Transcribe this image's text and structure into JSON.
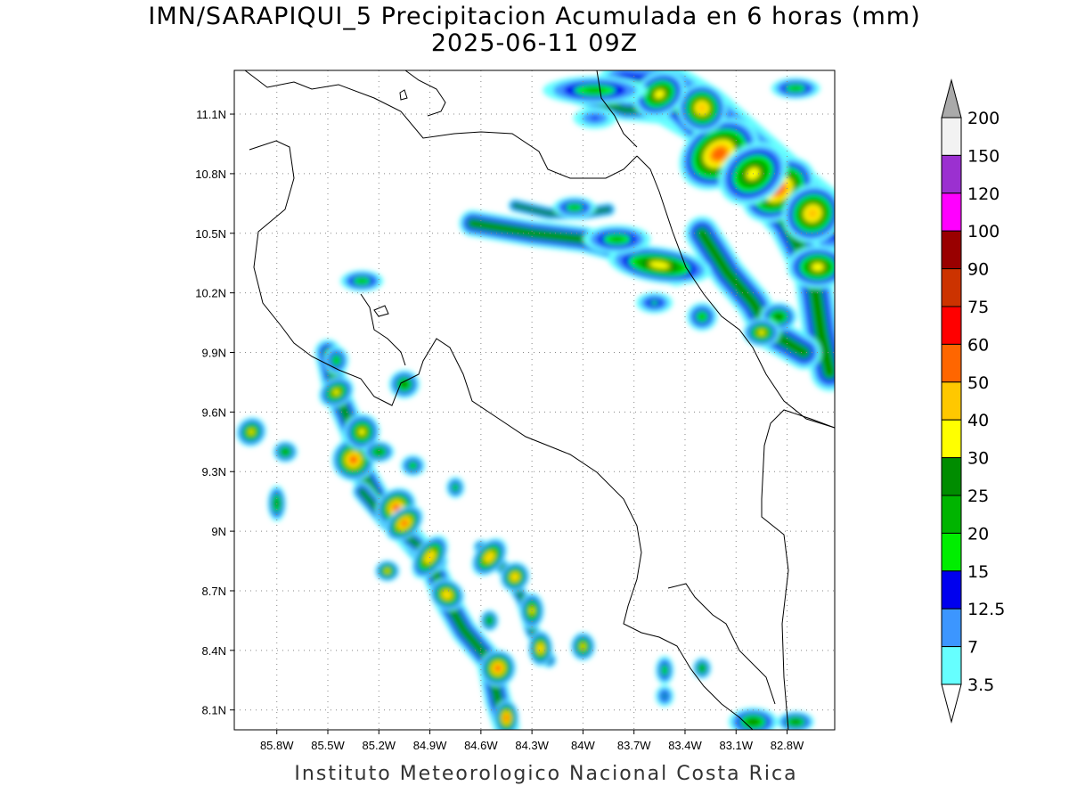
{
  "title": {
    "line1": "IMN/SARAPIQUI_5 Precipitacion Acumulada en 6 horas (mm)",
    "line2": "2025-06-11 09Z"
  },
  "footer": "Instituto Meteorologico Nacional Costa Rica",
  "map": {
    "lon_range": [
      -86.05,
      -82.52
    ],
    "lat_range": [
      8.0,
      11.32
    ],
    "lon_ticks": [
      {
        "value": -85.8,
        "label": "85.8W"
      },
      {
        "value": -85.5,
        "label": "85.5W"
      },
      {
        "value": -85.2,
        "label": "85.2W"
      },
      {
        "value": -84.9,
        "label": "84.9W"
      },
      {
        "value": -84.6,
        "label": "84.6W"
      },
      {
        "value": -84.3,
        "label": "84.3W"
      },
      {
        "value": -84.0,
        "label": "84W"
      },
      {
        "value": -83.7,
        "label": "83.7W"
      },
      {
        "value": -83.4,
        "label": "83.4W"
      },
      {
        "value": -83.1,
        "label": "83.1W"
      },
      {
        "value": -82.8,
        "label": "82.8W"
      }
    ],
    "lat_ticks": [
      {
        "value": 11.1,
        "label": "11.1N"
      },
      {
        "value": 10.8,
        "label": "10.8N"
      },
      {
        "value": 10.5,
        "label": "10.5N"
      },
      {
        "value": 10.2,
        "label": "10.2N"
      },
      {
        "value": 9.9,
        "label": "9.9N"
      },
      {
        "value": 9.6,
        "label": "9.6N"
      },
      {
        "value": 9.3,
        "label": "9.3N"
      },
      {
        "value": 9.0,
        "label": "9N"
      },
      {
        "value": 8.7,
        "label": "8.7N"
      },
      {
        "value": 8.4,
        "label": "8.4N"
      },
      {
        "value": 8.1,
        "label": "8.1N"
      }
    ],
    "grid": true
  },
  "colorbar": {
    "levels": [
      {
        "label": "200",
        "color": "#aaaaaa"
      },
      {
        "label": "150",
        "color": "#f2f2f2"
      },
      {
        "label": "120",
        "color": "#9b30d0"
      },
      {
        "label": "100",
        "color": "#ff00ff"
      },
      {
        "label": "90",
        "color": "#990000"
      },
      {
        "label": "75",
        "color": "#cc3300"
      },
      {
        "label": "60",
        "color": "#ff0000"
      },
      {
        "label": "50",
        "color": "#ff6600"
      },
      {
        "label": "40",
        "color": "#ffc800"
      },
      {
        "label": "30",
        "color": "#ffff00"
      },
      {
        "label": "25",
        "color": "#008c00"
      },
      {
        "label": "20",
        "color": "#00b400"
      },
      {
        "label": "15",
        "color": "#00ee00"
      },
      {
        "label": "12.5",
        "color": "#0000ee"
      },
      {
        "label": "7",
        "color": "#3c96ff"
      },
      {
        "label": "3.5",
        "color": "#66ffff"
      }
    ],
    "top_arrow_color": "#aaaaaa",
    "bottom_arrow_color": "#ffffff"
  },
  "precip_cells": [
    {
      "lon": -83.2,
      "lat": 10.9,
      "rx": 0.14,
      "ry": 0.09,
      "level": 8,
      "rot": 35
    },
    {
      "lon": -82.85,
      "lat": 10.72,
      "rx": 0.13,
      "ry": 0.08,
      "level": 8,
      "rot": 35
    },
    {
      "lon": -82.65,
      "lat": 10.6,
      "rx": 0.1,
      "ry": 0.08,
      "level": 7,
      "rot": 35
    },
    {
      "lon": -83.3,
      "lat": 11.13,
      "rx": 0.08,
      "ry": 0.07,
      "level": 7,
      "rot": 40
    },
    {
      "lon": -83.55,
      "lat": 11.2,
      "rx": 0.09,
      "ry": 0.06,
      "level": 6,
      "rot": 30
    },
    {
      "lon": -83.0,
      "lat": 10.8,
      "rx": 0.12,
      "ry": 0.08,
      "level": 6,
      "rot": 35
    },
    {
      "lon": -82.62,
      "lat": 10.33,
      "rx": 0.1,
      "ry": 0.06,
      "level": 6,
      "rot": 0
    },
    {
      "lon": -83.55,
      "lat": 10.34,
      "rx": 0.17,
      "ry": 0.05,
      "level": 6,
      "rot": -8
    },
    {
      "lon": -83.93,
      "lat": 11.22,
      "rx": 0.17,
      "ry": 0.04,
      "level": 4,
      "rot": 0
    },
    {
      "lon": -83.93,
      "lat": 11.08,
      "rx": 0.07,
      "ry": 0.03,
      "level": 2,
      "rot": 0
    },
    {
      "lon": -82.75,
      "lat": 11.23,
      "rx": 0.08,
      "ry": 0.03,
      "level": 4,
      "rot": 0
    },
    {
      "lon": -84.05,
      "lat": 10.63,
      "rx": 0.07,
      "ry": 0.03,
      "level": 4,
      "rot": 0
    },
    {
      "lon": -83.8,
      "lat": 10.47,
      "rx": 0.11,
      "ry": 0.04,
      "level": 4,
      "rot": 0
    },
    {
      "lon": -83.3,
      "lat": 10.08,
      "rx": 0.05,
      "ry": 0.04,
      "level": 4,
      "rot": 0
    },
    {
      "lon": -82.85,
      "lat": 10.08,
      "rx": 0.06,
      "ry": 0.04,
      "level": 5,
      "rot": 0
    },
    {
      "lon": -82.95,
      "lat": 10.0,
      "rx": 0.06,
      "ry": 0.04,
      "level": 6,
      "rot": 0
    },
    {
      "lon": -83.58,
      "lat": 10.15,
      "rx": 0.06,
      "ry": 0.03,
      "level": 3,
      "rot": 0
    },
    {
      "lon": -85.3,
      "lat": 10.26,
      "rx": 0.07,
      "ry": 0.03,
      "level": 4,
      "rot": 0
    },
    {
      "lon": -85.05,
      "lat": 9.74,
      "rx": 0.05,
      "ry": 0.04,
      "level": 5,
      "rot": 0
    },
    {
      "lon": -85.45,
      "lat": 9.86,
      "rx": 0.04,
      "ry": 0.04,
      "level": 4,
      "rot": 0
    },
    {
      "lon": -85.45,
      "lat": 9.7,
      "rx": 0.06,
      "ry": 0.04,
      "level": 6,
      "rot": 30
    },
    {
      "lon": -85.35,
      "lat": 9.36,
      "rx": 0.07,
      "ry": 0.06,
      "level": 8,
      "rot": 60
    },
    {
      "lon": -85.3,
      "lat": 9.5,
      "rx": 0.06,
      "ry": 0.05,
      "level": 6,
      "rot": 60
    },
    {
      "lon": -85.1,
      "lat": 9.12,
      "rx": 0.07,
      "ry": 0.05,
      "level": 8,
      "rot": 40
    },
    {
      "lon": -85.05,
      "lat": 9.04,
      "rx": 0.07,
      "ry": 0.04,
      "level": 8,
      "rot": 40
    },
    {
      "lon": -84.9,
      "lat": 8.87,
      "rx": 0.08,
      "ry": 0.04,
      "level": 7,
      "rot": 55
    },
    {
      "lon": -84.8,
      "lat": 8.68,
      "rx": 0.05,
      "ry": 0.05,
      "level": 7,
      "rot": 60
    },
    {
      "lon": -84.5,
      "lat": 8.31,
      "rx": 0.06,
      "ry": 0.05,
      "level": 8,
      "rot": 60
    },
    {
      "lon": -84.45,
      "lat": 8.06,
      "rx": 0.04,
      "ry": 0.05,
      "level": 8,
      "rot": 0
    },
    {
      "lon": -84.55,
      "lat": 8.87,
      "rx": 0.07,
      "ry": 0.04,
      "level": 7,
      "rot": 50
    },
    {
      "lon": -84.4,
      "lat": 8.77,
      "rx": 0.05,
      "ry": 0.04,
      "level": 7,
      "rot": 50
    },
    {
      "lon": -84.3,
      "lat": 8.6,
      "rx": 0.04,
      "ry": 0.05,
      "level": 6,
      "rot": 0
    },
    {
      "lon": -84.25,
      "lat": 8.41,
      "rx": 0.04,
      "ry": 0.05,
      "level": 7,
      "rot": 0
    },
    {
      "lon": -84.0,
      "lat": 8.42,
      "rx": 0.04,
      "ry": 0.04,
      "level": 6,
      "rot": 0
    },
    {
      "lon": -85.15,
      "lat": 8.8,
      "rx": 0.04,
      "ry": 0.03,
      "level": 6,
      "rot": 0
    },
    {
      "lon": -85.2,
      "lat": 9.4,
      "rx": 0.05,
      "ry": 0.03,
      "level": 5,
      "rot": 0
    },
    {
      "lon": -85.0,
      "lat": 9.33,
      "rx": 0.04,
      "ry": 0.03,
      "level": 4,
      "rot": 0
    },
    {
      "lon": -84.75,
      "lat": 9.22,
      "rx": 0.03,
      "ry": 0.03,
      "level": 4,
      "rot": 0
    },
    {
      "lon": -85.75,
      "lat": 9.4,
      "rx": 0.04,
      "ry": 0.03,
      "level": 5,
      "rot": 0
    },
    {
      "lon": -85.95,
      "lat": 9.5,
      "rx": 0.05,
      "ry": 0.04,
      "level": 6,
      "rot": 40
    },
    {
      "lon": -85.8,
      "lat": 9.14,
      "rx": 0.03,
      "ry": 0.05,
      "level": 5,
      "rot": 0
    },
    {
      "lon": -84.55,
      "lat": 8.55,
      "rx": 0.03,
      "ry": 0.03,
      "level": 5,
      "rot": 0
    },
    {
      "lon": -83.52,
      "lat": 8.3,
      "rx": 0.03,
      "ry": 0.04,
      "level": 4,
      "rot": 0
    },
    {
      "lon": -83.3,
      "lat": 8.31,
      "rx": 0.03,
      "ry": 0.03,
      "level": 5,
      "rot": 0
    },
    {
      "lon": -83.52,
      "lat": 8.17,
      "rx": 0.03,
      "ry": 0.03,
      "level": 3,
      "rot": 0
    },
    {
      "lon": -83.0,
      "lat": 8.04,
      "rx": 0.08,
      "ry": 0.04,
      "level": 5,
      "rot": 0
    },
    {
      "lon": -82.75,
      "lat": 8.04,
      "rx": 0.06,
      "ry": 0.03,
      "level": 5,
      "rot": 0
    }
  ],
  "precip_bands": [
    {
      "points": [
        [
          -84.65,
          10.55
        ],
        [
          -84.3,
          10.5
        ],
        [
          -84.0,
          10.47
        ],
        [
          -83.7,
          10.4
        ],
        [
          -83.45,
          10.3
        ]
      ],
      "w": 0.07
    },
    {
      "points": [
        [
          -84.4,
          10.64
        ],
        [
          -84.2,
          10.6
        ],
        [
          -84.0,
          10.6
        ],
        [
          -83.85,
          10.62
        ]
      ],
      "w": 0.035
    },
    {
      "points": [
        [
          -83.75,
          11.22
        ],
        [
          -83.5,
          11.2
        ],
        [
          -83.3,
          11.1
        ],
        [
          -83.1,
          10.95
        ],
        [
          -82.9,
          10.8
        ],
        [
          -82.7,
          10.65
        ],
        [
          -82.55,
          10.55
        ]
      ],
      "w": 0.16
    },
    {
      "points": [
        [
          -83.45,
          11.15
        ],
        [
          -83.1,
          10.85
        ],
        [
          -82.8,
          10.55
        ],
        [
          -82.65,
          10.3
        ],
        [
          -82.6,
          10.0
        ],
        [
          -82.55,
          9.8
        ]
      ],
      "w": 0.1
    },
    {
      "points": [
        [
          -84.05,
          11.2
        ],
        [
          -83.75,
          11.12
        ],
        [
          -83.55,
          11.12
        ]
      ],
      "w": 0.05
    },
    {
      "points": [
        [
          -83.3,
          10.5
        ],
        [
          -83.15,
          10.3
        ],
        [
          -83.0,
          10.15
        ],
        [
          -82.9,
          10.0
        ],
        [
          -82.7,
          9.9
        ]
      ],
      "w": 0.09
    },
    {
      "points": [
        [
          -85.5,
          9.9
        ],
        [
          -85.45,
          9.7
        ],
        [
          -85.35,
          9.5
        ],
        [
          -85.3,
          9.3
        ],
        [
          -85.2,
          9.15
        ],
        [
          -85.05,
          9.0
        ],
        [
          -84.9,
          8.85
        ],
        [
          -84.8,
          8.65
        ],
        [
          -84.7,
          8.5
        ],
        [
          -84.55,
          8.35
        ],
        [
          -84.5,
          8.15
        ],
        [
          -84.45,
          8.02
        ]
      ],
      "w": 0.07
    },
    {
      "points": [
        [
          -85.3,
          9.2
        ],
        [
          -85.15,
          9.05
        ],
        [
          -85.0,
          8.95
        ],
        [
          -84.85,
          8.85
        ]
      ],
      "w": 0.05
    },
    {
      "points": [
        [
          -84.6,
          8.92
        ],
        [
          -84.45,
          8.8
        ],
        [
          -84.35,
          8.65
        ],
        [
          -84.3,
          8.5
        ],
        [
          -84.2,
          8.35
        ]
      ],
      "w": 0.04
    }
  ]
}
